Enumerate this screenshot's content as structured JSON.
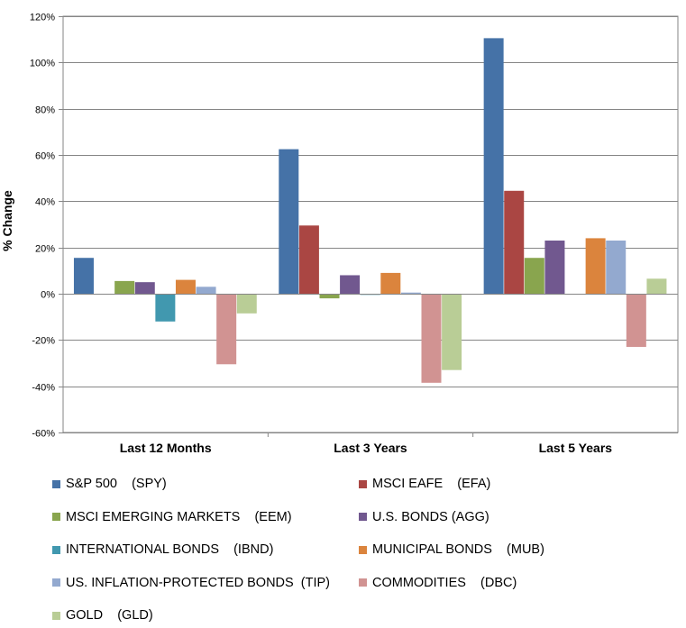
{
  "chart_data": {
    "type": "bar",
    "title": "",
    "xlabel": "",
    "ylabel": "% Change",
    "ylim": [
      -60,
      120
    ],
    "y_tick_step": 20,
    "y_tick_format": "percent",
    "y_ticks": [
      "120%",
      "100%",
      "80%",
      "60%",
      "40%",
      "20%",
      "0%",
      "-20%",
      "-40%",
      "-60%"
    ],
    "grid": true,
    "legend_position": "bottom",
    "categories": [
      "Last 12 Months",
      "Last 3 Years",
      "Last 5 Years"
    ],
    "series": [
      {
        "name": "S&P 500    (SPY)",
        "color": "#4572A7",
        "values": [
          15.5,
          62.5,
          110.5
        ]
      },
      {
        "name": "MSCI EAFE    (EFA)",
        "color": "#AA4643",
        "values": [
          0,
          29.5,
          44.5
        ]
      },
      {
        "name": "MSCI EMERGING MARKETS    (EEM)",
        "color": "#89A54E",
        "values": [
          5.5,
          -2,
          15.5
        ]
      },
      {
        "name": "U.S. BONDS (AGG)",
        "color": "#71588F",
        "values": [
          5,
          8,
          23
        ]
      },
      {
        "name": "INTERNATIONAL BONDS    (IBND)",
        "color": "#4198AF",
        "values": [
          -12,
          -0.5,
          0
        ]
      },
      {
        "name": "MUNICIPAL BONDS    (MUB)",
        "color": "#DB843D",
        "values": [
          6,
          9,
          24
        ]
      },
      {
        "name": "US. INFLATION-PROTECTED BONDS  (TIP)",
        "color": "#93A9CF",
        "values": [
          3,
          0.5,
          23
        ]
      },
      {
        "name": "COMMODITIES    (DBC)",
        "color": "#D19392",
        "values": [
          -30.5,
          -38.5,
          -23
        ]
      },
      {
        "name": "GOLD    (GLD)",
        "color": "#B9CD96",
        "values": [
          -8.5,
          -33,
          6.5
        ]
      }
    ]
  }
}
